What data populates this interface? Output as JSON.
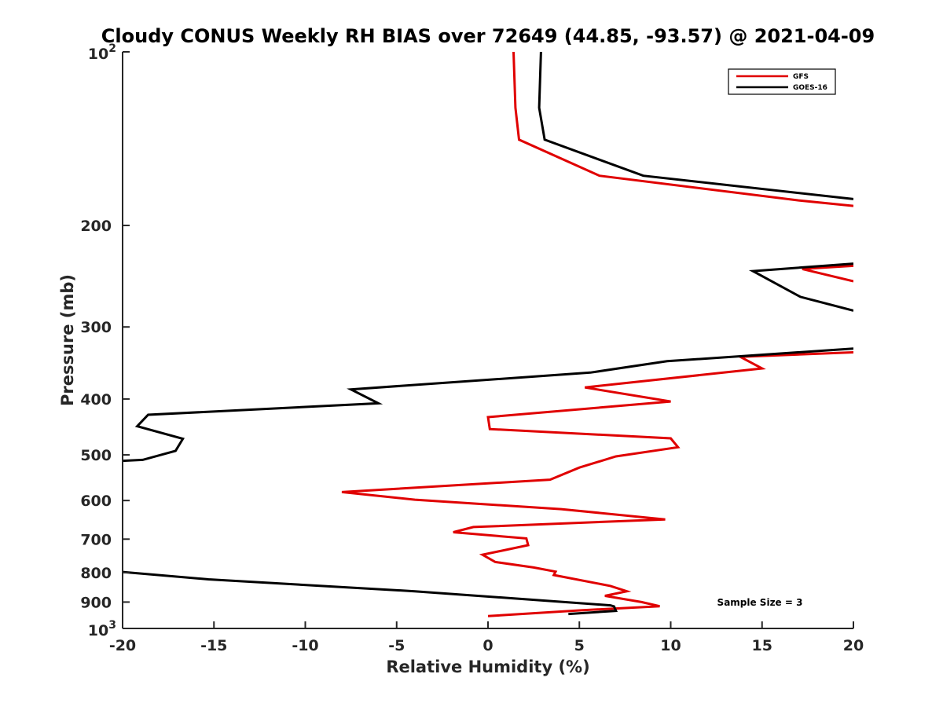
{
  "chart_data": {
    "type": "line",
    "title": "Cloudy CONUS Weekly RH BIAS over 72649 (44.85, -93.57) @ 2021-04-09",
    "xlabel": "Relative Humidity (%)",
    "ylabel": "Pressure (mb)",
    "xlim": [
      -20,
      20
    ],
    "ylim": [
      100,
      1000
    ],
    "y_scale": "log",
    "y_reversed": true,
    "x_ticks": [
      "-20",
      "-15",
      "-10",
      "-5",
      "0",
      "5",
      "10",
      "15",
      "20"
    ],
    "y_ticks": [
      {
        "value": 100,
        "base": "10",
        "exp": "2"
      },
      {
        "value": 200,
        "label": "200"
      },
      {
        "value": 300,
        "label": "300"
      },
      {
        "value": 400,
        "label": "400"
      },
      {
        "value": 500,
        "label": "500"
      },
      {
        "value": 600,
        "label": "600"
      },
      {
        "value": 700,
        "label": "700"
      },
      {
        "value": 800,
        "label": "800"
      },
      {
        "value": 900,
        "label": "900"
      },
      {
        "value": 1000,
        "base": "10",
        "exp": "3"
      }
    ],
    "grid": false,
    "legend_position": "top-right",
    "series": [
      {
        "name": "GFS",
        "color": "#e00000",
        "segments": [
          [
            [
              1.4,
              100
            ],
            [
              1.5,
              125
            ],
            [
              1.7,
              142
            ],
            [
              6.1,
              164
            ],
            [
              17,
              181
            ],
            [
              20,
              185
            ]
          ],
          [
            [
              20,
              235
            ],
            [
              17.2,
              238
            ],
            [
              20,
              250
            ]
          ],
          [
            [
              20,
              332
            ],
            [
              13.8,
              338
            ],
            [
              15,
              354
            ],
            [
              5.3,
              382
            ],
            [
              10,
              404
            ],
            [
              0,
              430
            ],
            [
              0.1,
              451
            ],
            [
              10,
              468
            ],
            [
              10.4,
              485
            ],
            [
              7,
              503
            ],
            [
              5,
              526
            ],
            [
              3.4,
              552
            ],
            [
              -8,
              580
            ],
            [
              -4,
              598
            ],
            [
              4,
              621
            ],
            [
              9.7,
              647
            ],
            [
              -0.8,
              667
            ],
            [
              -1.9,
              681
            ],
            [
              2.1,
              698
            ],
            [
              2.2,
              717
            ],
            [
              -0.3,
              745
            ],
            [
              0.4,
              767
            ],
            [
              2.5,
              784
            ],
            [
              3.7,
              797
            ],
            [
              3.6,
              808
            ],
            [
              6.7,
              844
            ],
            [
              7.6,
              862
            ],
            [
              6.4,
              878
            ],
            [
              8.4,
              900
            ],
            [
              9.4,
              915
            ],
            [
              5.1,
              930
            ],
            [
              0,
              952
            ]
          ]
        ]
      },
      {
        "name": "GOES-16",
        "color": "#000000",
        "segments": [
          [
            [
              2.9,
              100
            ],
            [
              2.8,
              125
            ],
            [
              3.1,
              142
            ],
            [
              8.5,
              164
            ],
            [
              20,
              180
            ]
          ],
          [
            [
              20,
              233
            ],
            [
              14.5,
              240
            ],
            [
              17.1,
              266
            ],
            [
              20,
              281
            ]
          ],
          [
            [
              20,
              327
            ],
            [
              9.8,
              344
            ],
            [
              5.6,
              360
            ],
            [
              -7.5,
              385
            ],
            [
              -6,
              407
            ],
            [
              -18.6,
              426
            ],
            [
              -19.2,
              446
            ],
            [
              -16.7,
              469
            ],
            [
              -17.1,
              492
            ],
            [
              -18.9,
              510
            ],
            [
              -20,
              512
            ]
          ],
          [
            [
              -20,
              798
            ],
            [
              -15.3,
              822
            ],
            [
              -4,
              862
            ],
            [
              6.7,
              912
            ],
            [
              6.9,
              916
            ],
            [
              7,
              932
            ],
            [
              4.4,
              944
            ]
          ]
        ]
      }
    ],
    "annotations": [
      "Sample Size = 3"
    ]
  }
}
